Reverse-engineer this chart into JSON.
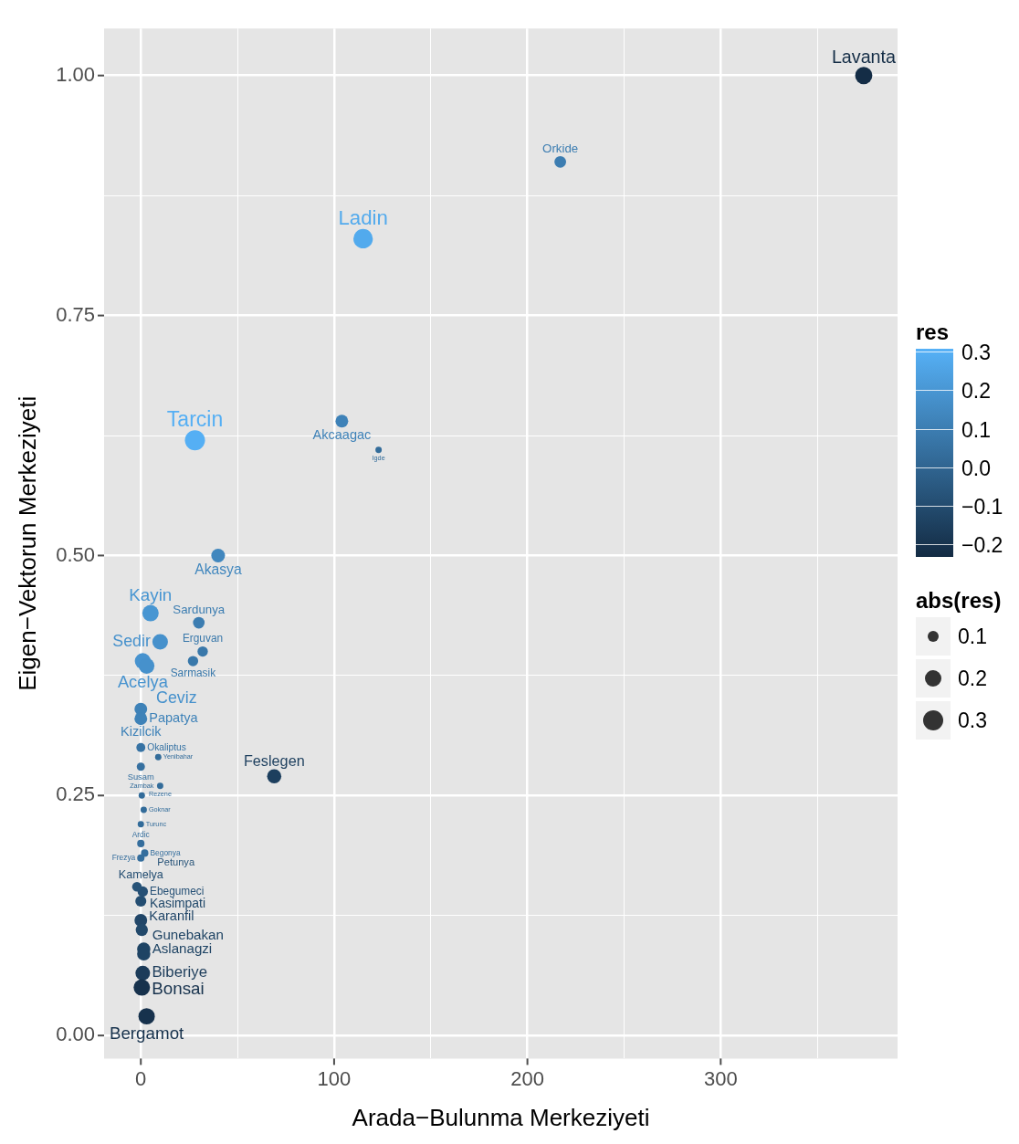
{
  "chart_data": {
    "type": "scatter",
    "xlabel": "Arada−Bulunma Merkeziyeti",
    "ylabel": "Eigen−Vektorun Merkeziyeti",
    "clabel": "res",
    "legend_title": "abs(res)",
    "x": [
      374,
      217,
      115,
      104,
      123,
      28,
      40,
      5,
      30,
      10,
      32,
      27,
      1,
      3,
      0,
      0,
      0,
      9,
      0,
      69,
      10,
      0.5,
      1.5,
      0,
      0,
      2,
      0,
      1,
      -2,
      0,
      0,
      0.5,
      1.5,
      1.5,
      1,
      0.5,
      3
    ],
    "values": [
      1.0,
      0.91,
      0.83,
      0.64,
      0.61,
      0.62,
      0.5,
      0.44,
      0.43,
      0.41,
      0.4,
      0.39,
      0.39,
      0.385,
      0.34,
      0.33,
      0.3,
      0.29,
      0.28,
      0.27,
      0.26,
      0.25,
      0.235,
      0.22,
      0.2,
      0.19,
      0.185,
      0.15,
      0.155,
      0.14,
      0.12,
      0.11,
      0.09,
      0.085,
      0.065,
      0.05,
      0.02
    ],
    "value_labels": [
      "Lavanta",
      "Orkide",
      "Ladin",
      "Akcaagac",
      "Igde",
      "Tarcin",
      "Akasya",
      "Kayin",
      "Sardunya",
      "Sedir",
      "Erguvan",
      "Sarmasik",
      "Acelya",
      "Ceviz",
      "Kizilcik",
      "Papatya",
      "Okaliptus",
      "Yenibahar",
      "Susam",
      "Feslegen",
      "Rezene",
      "Zambak",
      "Goknar",
      "Turunc",
      "Ardic",
      "Begonya",
      "Frezya",
      "Ebegumeci",
      "Petunya",
      "Kamelya",
      "Karanfil",
      "Kasimpati",
      "Aslanagzi",
      "Gunebakan",
      "Biberiye",
      "Bonsai",
      "Bergamot"
    ],
    "cvalues": [
      -0.22,
      0.1,
      0.28,
      0.12,
      0.03,
      0.3,
      0.14,
      0.2,
      0.1,
      0.18,
      0.08,
      0.08,
      0.19,
      0.18,
      0.12,
      0.12,
      0.06,
      0.03,
      0.05,
      -0.15,
      0.03,
      0.03,
      0.03,
      0.03,
      0.04,
      0.04,
      0.04,
      -0.08,
      -0.07,
      -0.09,
      -0.12,
      -0.11,
      -0.13,
      -0.13,
      -0.16,
      -0.2,
      -0.2
    ],
    "sizes": [
      0.22,
      0.1,
      0.28,
      0.12,
      0.03,
      0.3,
      0.14,
      0.2,
      0.1,
      0.18,
      0.08,
      0.08,
      0.19,
      0.18,
      0.12,
      0.12,
      0.06,
      0.03,
      0.05,
      0.15,
      0.03,
      0.03,
      0.03,
      0.03,
      0.04,
      0.04,
      0.04,
      0.08,
      0.07,
      0.09,
      0.12,
      0.11,
      0.13,
      0.13,
      0.16,
      0.2,
      0.2
    ],
    "size_legend": [
      {
        "value": 0.1,
        "label": "0.1"
      },
      {
        "value": 0.2,
        "label": "0.2"
      },
      {
        "value": 0.3,
        "label": "0.3"
      }
    ],
    "clim": [
      -0.23,
      0.31
    ],
    "cticks": [
      {
        "value": 0.3,
        "label": "0.3"
      },
      {
        "value": 0.2,
        "label": "0.2"
      },
      {
        "value": 0.1,
        "label": "0.1"
      },
      {
        "value": 0,
        "label": "0.0"
      },
      {
        "value": -0.1,
        "label": "−0.1"
      },
      {
        "value": -0.2,
        "label": "−0.2"
      }
    ],
    "xlim": [
      -19,
      391.5
    ],
    "ylim": [
      -0.024,
      1.049
    ],
    "xticks": [
      0,
      {
        "value": 50,
        "label": null
      },
      100,
      {
        "value": 150,
        "label": null
      },
      200,
      {
        "value": 250,
        "label": null
      },
      300,
      {
        "value": 350,
        "label": null
      }
    ],
    "yticks": [
      {
        "value": 0,
        "label": "0.00"
      },
      {
        "value": 0.125,
        "label": null
      },
      {
        "value": 0.25,
        "label": "0.25"
      },
      {
        "value": 0.375,
        "label": null
      },
      {
        "value": 0.5,
        "label": "0.50"
      },
      {
        "value": 0.625,
        "label": null
      },
      {
        "value": 0.75,
        "label": "0.75"
      },
      {
        "value": 0.875,
        "label": null
      },
      {
        "value": 1,
        "label": "1.00"
      }
    ],
    "grid": true
  }
}
